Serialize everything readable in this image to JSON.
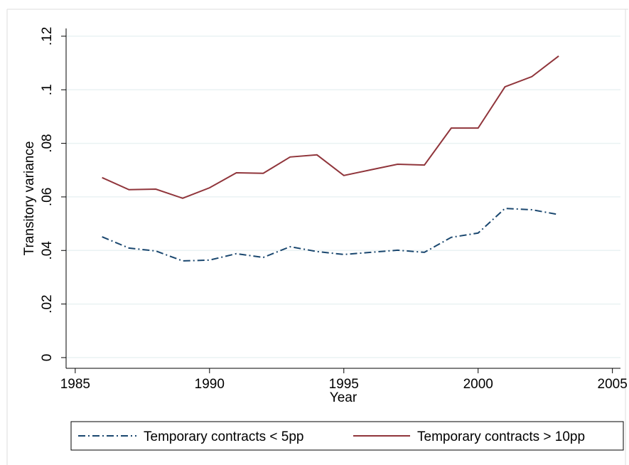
{
  "chart_data": {
    "type": "line",
    "y_label": "Transitory variance",
    "x_label": "Year",
    "x": [
      1986,
      1987,
      1988,
      1989,
      1990,
      1991,
      1992,
      1993,
      1994,
      1995,
      1996,
      1997,
      1998,
      1999,
      2000,
      2001,
      2002,
      2003
    ],
    "series": [
      {
        "name": "Temporary contracts < 5pp",
        "color": "#1a476f",
        "dash": "dashdot",
        "values": [
          0.0451,
          0.0409,
          0.0398,
          0.0361,
          0.0364,
          0.0388,
          0.0374,
          0.0414,
          0.0396,
          0.0385,
          0.0393,
          0.0401,
          0.0393,
          0.0449,
          0.0465,
          0.0557,
          0.0552,
          0.0534
        ]
      },
      {
        "name": "Temporary contracts > 10pp",
        "color": "#90353b",
        "dash": "solid",
        "values": [
          0.0672,
          0.0627,
          0.0629,
          0.0595,
          0.0634,
          0.069,
          0.0688,
          0.0749,
          0.0757,
          0.068,
          0.0701,
          0.0722,
          0.0719,
          0.0857,
          0.0857,
          0.1011,
          0.1049,
          0.1126
        ]
      }
    ],
    "xlim": [
      1984.66,
      2005.3
    ],
    "xticks": [
      1985,
      1990,
      1995,
      2000,
      2005
    ],
    "ylim": [
      -0.004,
      0.1229
    ],
    "yticks": [
      0,
      {
        "value": 0.02,
        "label": ".02"
      },
      {
        "value": 0.04,
        "label": ".04"
      },
      {
        "value": 0.06,
        "label": ".06"
      },
      {
        "value": 0.08,
        "label": ".08"
      },
      {
        "value": 0.1,
        "label": ".1"
      },
      {
        "value": 0.12,
        "label": ".12"
      }
    ],
    "grid": true,
    "legend": "bottom"
  }
}
